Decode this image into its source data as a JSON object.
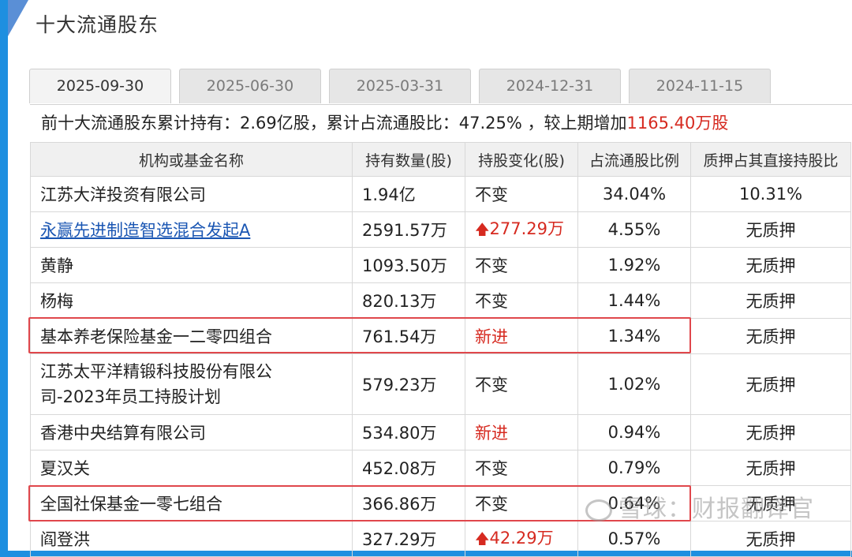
{
  "title": "十大流通股东",
  "tabs": [
    {
      "label": "2025-09-30",
      "active": true
    },
    {
      "label": "2025-06-30",
      "active": false
    },
    {
      "label": "2025-03-31",
      "active": false
    },
    {
      "label": "2024-12-31",
      "active": false
    },
    {
      "label": "2024-11-15",
      "active": false
    }
  ],
  "summary": {
    "prefix": "前十大流通股东累计持有：2.69亿股，累计占流通股比：47.25% ，较上期增加",
    "highlight": "1165.40万股"
  },
  "table": {
    "headers": [
      "机构或基金名称",
      "持有数量(股)",
      "持股变化(股)",
      "占流通股比例",
      "质押占其直接持股比"
    ],
    "rows": [
      {
        "name": "江苏大洋投资有限公司",
        "hold": "1.94亿",
        "change": "不变",
        "ratio": "34.04%",
        "pledge": "10.31%"
      },
      {
        "name": "永赢先进制造智选混合发起A",
        "hold": "2591.57万",
        "change": "277.29万",
        "ratio": "4.55%",
        "pledge": "无质押"
      },
      {
        "name": "黄静",
        "hold": "1093.50万",
        "change": "不变",
        "ratio": "1.92%",
        "pledge": "无质押"
      },
      {
        "name": "杨梅",
        "hold": "820.13万",
        "change": "不变",
        "ratio": "1.44%",
        "pledge": "无质押"
      },
      {
        "name": "基本养老保险基金一二零四组合",
        "hold": "761.54万",
        "change": "新进",
        "ratio": "1.34%",
        "pledge": "无质押"
      },
      {
        "name_line1": "江苏太平洋精锻科技股份有限公",
        "name_line2": "司-2023年员工持股计划",
        "hold": "579.23万",
        "change": "不变",
        "ratio": "1.02%",
        "pledge": "无质押"
      },
      {
        "name": "香港中央结算有限公司",
        "hold": "534.80万",
        "change": "新进",
        "ratio": "0.94%",
        "pledge": "无质押"
      },
      {
        "name": "夏汉关",
        "hold": "452.08万",
        "change": "不变",
        "ratio": "0.79%",
        "pledge": "无质押"
      },
      {
        "name": "全国社保基金一零七组合",
        "hold": "366.86万",
        "change": "不变",
        "ratio": "0.64%",
        "pledge": "无质押"
      },
      {
        "name": "阎登洪",
        "hold": "327.29万",
        "change": "42.29万",
        "ratio": "0.57%",
        "pledge": "无质押"
      }
    ]
  },
  "watermark": "雪球：财报翻译官",
  "icons": {
    "up_arrow": "up-arrow-icon"
  },
  "colors": {
    "accent_red": "#d62a20",
    "link_blue": "#1a56b3",
    "frame_blue": "#1e8fe0",
    "highlight_box": "#e0474c"
  }
}
